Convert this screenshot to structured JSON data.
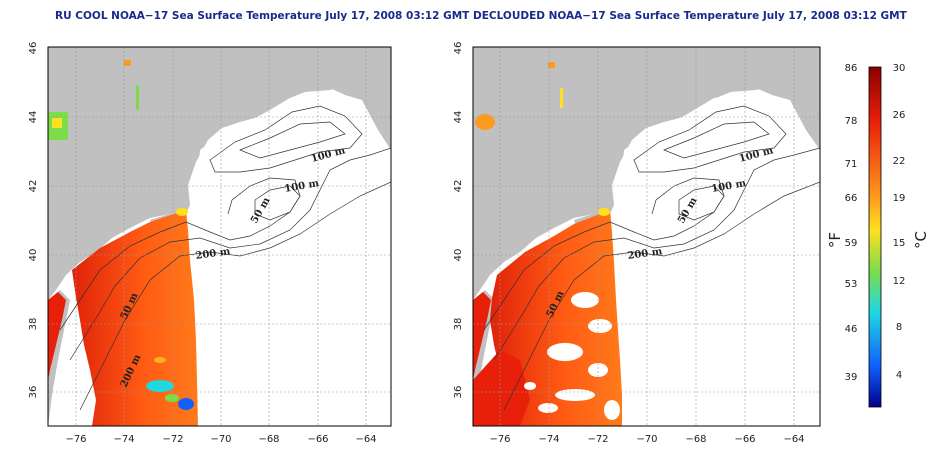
{
  "panels": [
    {
      "id": "left",
      "title": "RU COOL NOAA−17 Sea Surface Temperature July 17, 2008 03:12 GMT",
      "mode": "raw"
    },
    {
      "id": "right",
      "title": "DECLOUDED NOAA−17 Sea Surface Temperature July 17, 2008 03:12 GMT",
      "mode": "declouded"
    }
  ],
  "axes": {
    "x_ticks": [
      "−76",
      "−74",
      "−72",
      "−70",
      "−68",
      "−66",
      "−64"
    ],
    "y_ticks": [
      "36",
      "38",
      "40",
      "42",
      "44",
      "46"
    ]
  },
  "contour_labels": {
    "left": [
      "100 m",
      "100 m",
      "50 m",
      "200 m",
      "50 m",
      "200 m"
    ],
    "right": [
      "100 m",
      "100 m",
      "50 m",
      "200 m",
      "50 m"
    ]
  },
  "colorbar": {
    "fahrenheit_label": "°F",
    "celsius_label": "°C",
    "fahrenheit_ticks": [
      "86",
      "78",
      "71",
      "66",
      "59",
      "53",
      "46",
      "39"
    ],
    "celsius_ticks": [
      "30",
      "26",
      "22",
      "19",
      "15",
      "12",
      "8",
      "4"
    ],
    "colors": {
      "top": "#8b0000",
      "red": "#e8200a",
      "orange": "#ff8c1a",
      "yellow": "#ffe020",
      "green": "#7ddc4a",
      "cyan": "#20d8e0",
      "blue": "#1060ff",
      "bottom": "#00008b"
    }
  },
  "map_colors": {
    "land": "#c0c0c0",
    "ocean": "#ffffff"
  }
}
